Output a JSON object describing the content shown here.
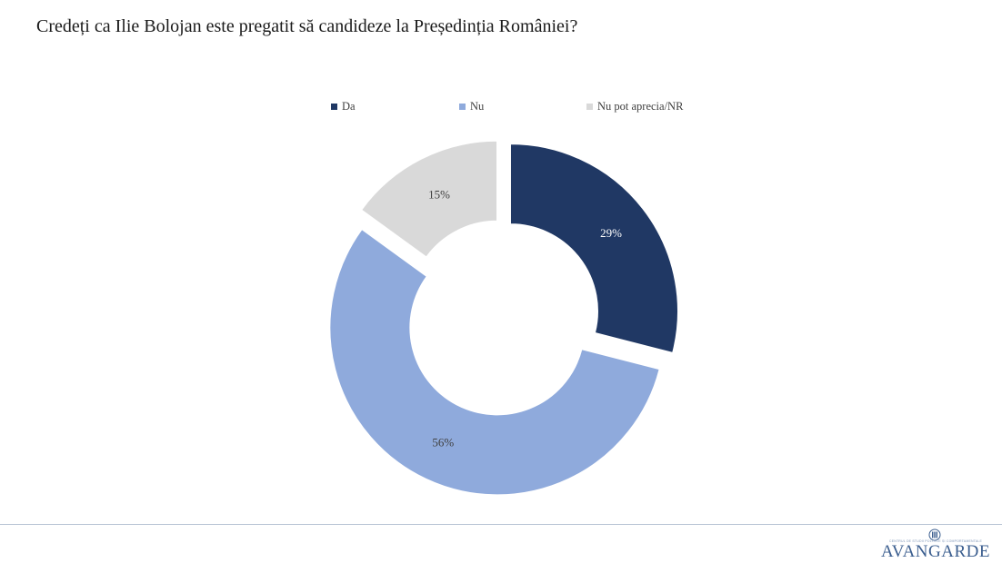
{
  "slide": {
    "title": "Credeți ca Ilie Bolojan este pregatit să candideze la Președinția României?"
  },
  "legend": [
    {
      "label": "Da",
      "color": "#203864"
    },
    {
      "label": "Nu",
      "color": "#8faadc"
    },
    {
      "label": "Nu pot aprecia/NR",
      "color": "#d9d9d9"
    }
  ],
  "chart_data": {
    "type": "pie",
    "variant": "donut",
    "title": "Credeți ca Ilie Bolojan este pregatit să candideze la Președinția României?",
    "legend_position": "top",
    "exploded": true,
    "series": [
      {
        "categories": [
          "Da",
          "Nu",
          "Nu pot aprecia/NR"
        ],
        "values": [
          29,
          56,
          15
        ],
        "labels": [
          "29%",
          "56%",
          "15%"
        ],
        "colors": [
          "#203864",
          "#8faadc",
          "#d9d9d9"
        ],
        "label_colors": [
          "#ffffff",
          "#404040",
          "#404040"
        ]
      }
    ]
  },
  "branding": {
    "logo_text": "AVANGARDE",
    "logo_tagline": "CENTRUL DE STUDII POLITICE ȘI COMPORTAMENTALE",
    "logo_icon": "avangarde-logo-icon"
  }
}
